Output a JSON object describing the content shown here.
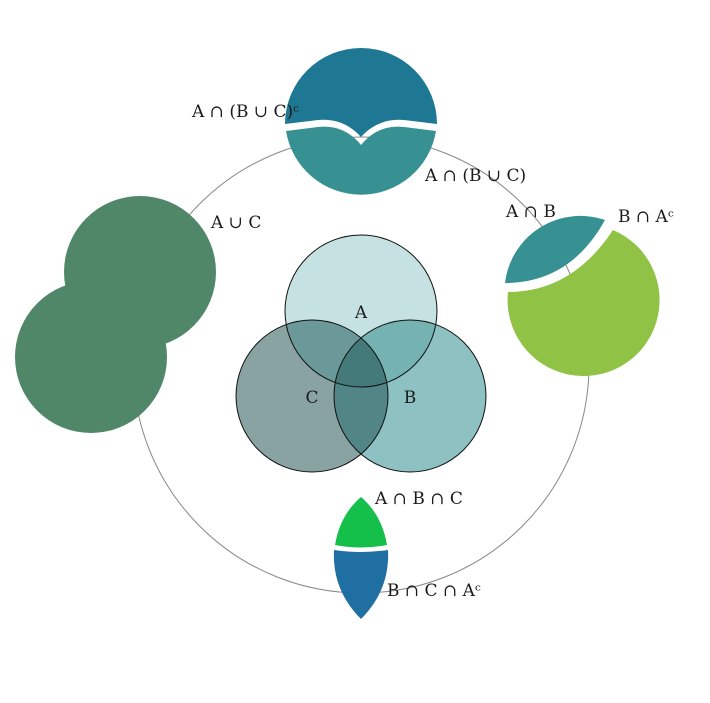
{
  "diagram": {
    "labels": {
      "set_a": "A",
      "set_b": "B",
      "set_c": "C",
      "a_and_not_b_or_c": "A ∩ (B ∪ C)ᶜ",
      "a_and_b_or_c": "A ∩ (B ∪ C)",
      "a_or_c": "A ∪ C",
      "a_and_b": "A ∩ B",
      "b_and_not_a": "B ∩ Aᶜ",
      "a_and_b_and_c": "A ∩ B ∩ C",
      "b_and_c_and_not_a": "B ∩ C ∩ Aᶜ"
    },
    "colors": {
      "circle_a": "#c6e1e1",
      "circle_b": "#8ec2c2",
      "circle_c": "#89a3a3",
      "overlap_ab": "#75b3b3",
      "overlap_ac": "#6b9898",
      "overlap_bc": "#528585",
      "overlap_abc": "#457a7a",
      "orbit": "#888888",
      "top_dark": "#1f7893",
      "top_light": "#379192",
      "union_green": "#4f8768",
      "right_teal": "#379192",
      "right_lime": "#8fc245",
      "bottom_green": "#14c04a",
      "bottom_blue": "#1f6fa2"
    }
  }
}
